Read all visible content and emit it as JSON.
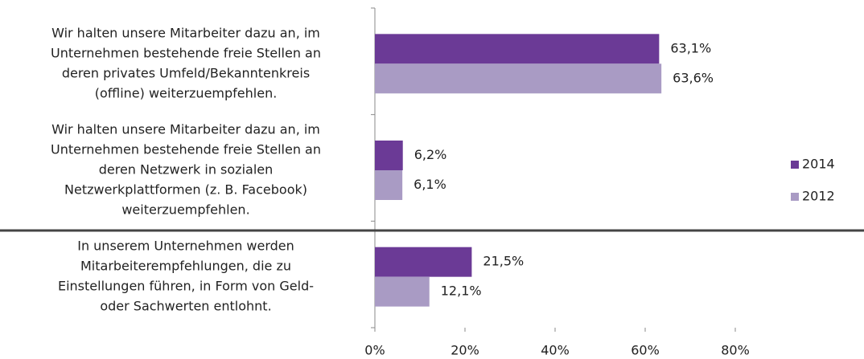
{
  "chart_data": {
    "type": "bar",
    "orientation": "horizontal",
    "categories": [
      [
        "Wir halten unsere Mitarbeiter dazu an, im",
        "Unternehmen bestehende freie Stellen an",
        "deren privates Umfeld/Bekanntenkreis",
        "(offline) weiterzuempfehlen."
      ],
      [
        "Wir halten unsere Mitarbeiter dazu an, im",
        "Unternehmen bestehende freie Stellen an",
        "deren Netzwerk in sozialen",
        "Netzwerkplattformen (z. B. Facebook)",
        "weiterzuempfehlen."
      ],
      [
        "In unserem Unternehmen werden",
        "Mitarbeiterempfehlungen, die zu",
        "Einstellungen führen, in Form von Geld-",
        "oder Sachwerten entlohnt."
      ]
    ],
    "series": [
      {
        "name": "2014",
        "color": "#6b3a96",
        "values": [
          63.1,
          6.2,
          21.5
        ],
        "value_labels": [
          "63,1%",
          "6,2%",
          "21,5%"
        ]
      },
      {
        "name": "2012",
        "color": "#a99bc4",
        "values": [
          63.6,
          6.1,
          12.1
        ],
        "value_labels": [
          "63,6%",
          "6,1%",
          "12,1%"
        ]
      }
    ],
    "xlim": [
      0,
      80
    ],
    "xticks": [
      {
        "value": 0,
        "label": "0%"
      },
      {
        "value": 20,
        "label": "20%"
      },
      {
        "value": 40,
        "label": "40%"
      },
      {
        "value": 60,
        "label": "60%"
      },
      {
        "value": 80,
        "label": "80%"
      }
    ],
    "legend": "right"
  }
}
